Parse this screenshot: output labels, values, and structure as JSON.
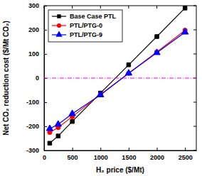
{
  "chart_data": {
    "type": "line",
    "x_label": "H₂ price ($/Mt)",
    "y_label": "Net CO₂ reduction cost ($/Mt CO₂)",
    "x": [
      100,
      250,
      500,
      1000,
      1500,
      2000,
      2500
    ],
    "series": [
      {
        "name": "Base Case PTL",
        "color": "#000000",
        "marker": "square",
        "line_style": "solid",
        "values": [
          -270,
          -240,
          -180,
          -62,
          55,
          172,
          290
        ]
      },
      {
        "name": "PTL/PTG-0",
        "color": "#ff0000",
        "marker": "circle",
        "line_style": "solid",
        "values": [
          -225,
          -205,
          -160,
          -68,
          20,
          108,
          198
        ]
      },
      {
        "name": "PTL/PTG-9",
        "color": "#0000ff",
        "marker": "triangle",
        "line_style": "solid",
        "values": [
          -210,
          -192,
          -148,
          -70,
          20,
          105,
          190
        ]
      },
      {
        "color": "#ff00ff",
        "marker": "none",
        "line_style": "dashdot",
        "x": [
          0,
          2700
        ],
        "values": [
          0,
          0
        ]
      }
    ],
    "xlim": [
      0,
      2700
    ],
    "xticks": [
      0,
      500,
      1000,
      1500,
      2000,
      2500
    ],
    "ylim": [
      -300,
      300
    ],
    "yticks": [
      -300,
      -200,
      -100,
      0,
      100,
      200,
      300
    ],
    "legend": "top-left",
    "grid": false
  }
}
